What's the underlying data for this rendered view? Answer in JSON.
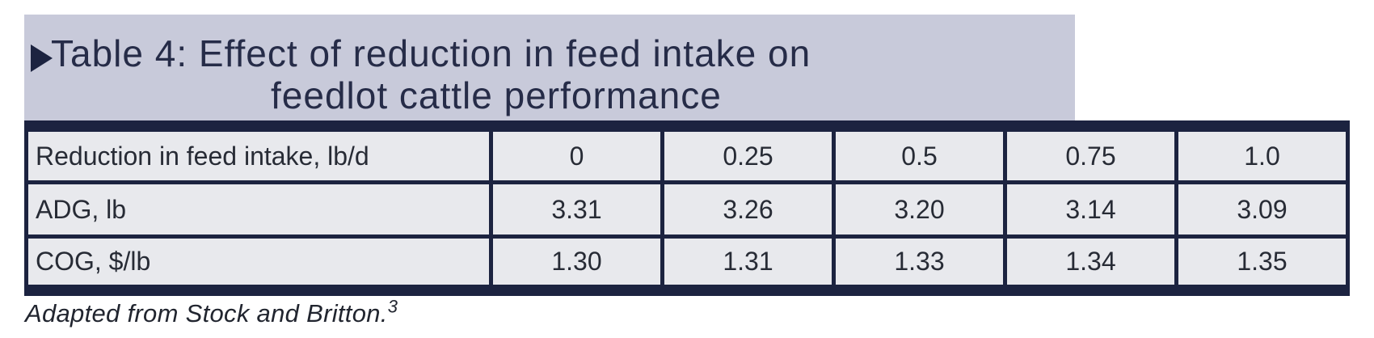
{
  "colors": {
    "navy": "#1c2340",
    "banner": "#c8cada",
    "cell": "#e8e9ed",
    "tabletext": "#272b35",
    "titletext": "#262c48",
    "foottext": "#21252f"
  },
  "header": {
    "marker_icon": "right-triangle",
    "title_line1": "Table 4: Effect of reduction in feed intake on",
    "title_line2": "feedlot cattle performance"
  },
  "table": {
    "rows": [
      {
        "label": "Reduction in feed intake, lb/d",
        "values": [
          "0",
          "0.25",
          "0.5",
          "0.75",
          "1.0"
        ]
      },
      {
        "label": "ADG, lb",
        "values": [
          "3.31",
          "3.26",
          "3.20",
          "3.14",
          "3.09"
        ]
      },
      {
        "label": "COG, $/lb",
        "values": [
          "1.30",
          "1.31",
          "1.33",
          "1.34",
          "1.35"
        ]
      }
    ]
  },
  "footnote": {
    "text": "Adapted from Stock and Britton.",
    "superscript": "3"
  },
  "chart_data": {
    "type": "table",
    "title": "Table 4: Effect of reduction in feed intake on feedlot cattle performance",
    "row_headers": [
      "Reduction in feed intake, lb/d",
      "ADG, lb",
      "COG, $/lb"
    ],
    "columns": [
      "0",
      "0.25",
      "0.5",
      "0.75",
      "1.0"
    ],
    "rows": [
      [
        0,
        0.25,
        0.5,
        0.75,
        1.0
      ],
      [
        3.31,
        3.26,
        3.2,
        3.14,
        3.09
      ],
      [
        1.3,
        1.31,
        1.33,
        1.34,
        1.35
      ]
    ],
    "footnote": "Adapted from Stock and Britton.3"
  }
}
